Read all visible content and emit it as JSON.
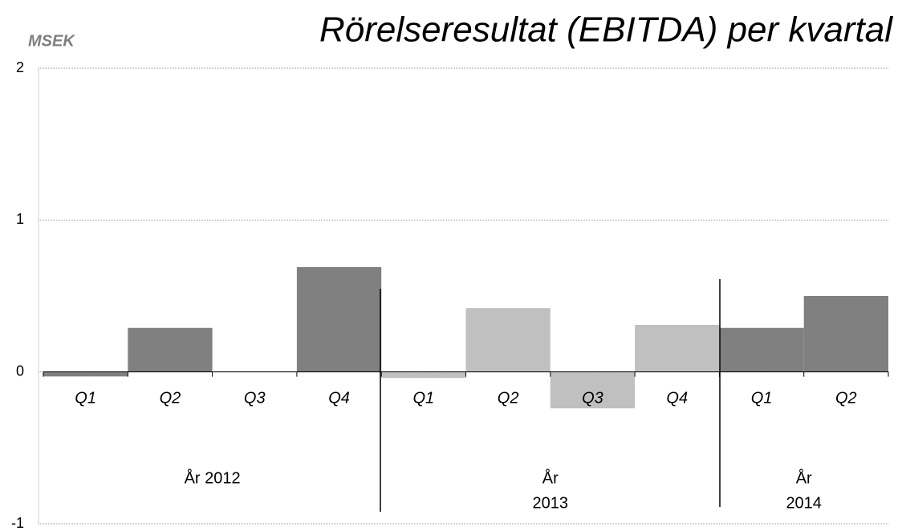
{
  "chart_data": {
    "type": "bar",
    "title": "Rörelseresultat (EBITDA) per kvartal",
    "y_label": "MSEK",
    "ylim": [
      -1,
      2
    ],
    "yticks": [
      -1,
      0,
      1,
      2
    ],
    "grid": true,
    "groups": [
      {
        "label": [
          "År 2012"
        ],
        "quarters": [
          "Q1",
          "Q2",
          "Q3",
          "Q4"
        ],
        "values": [
          -0.03,
          0.29,
          0,
          0.69
        ],
        "color": "#808080"
      },
      {
        "label": [
          "År",
          "2013"
        ],
        "quarters": [
          "Q1",
          "Q2",
          "Q3",
          "Q4"
        ],
        "values": [
          -0.04,
          0.42,
          -0.24,
          0.31
        ],
        "color": "#c0c0c0"
      },
      {
        "label": [
          "År",
          "2014"
        ],
        "quarters": [
          "Q1",
          "Q2"
        ],
        "values": [
          0.29,
          0.5
        ],
        "color": "#808080"
      }
    ]
  }
}
